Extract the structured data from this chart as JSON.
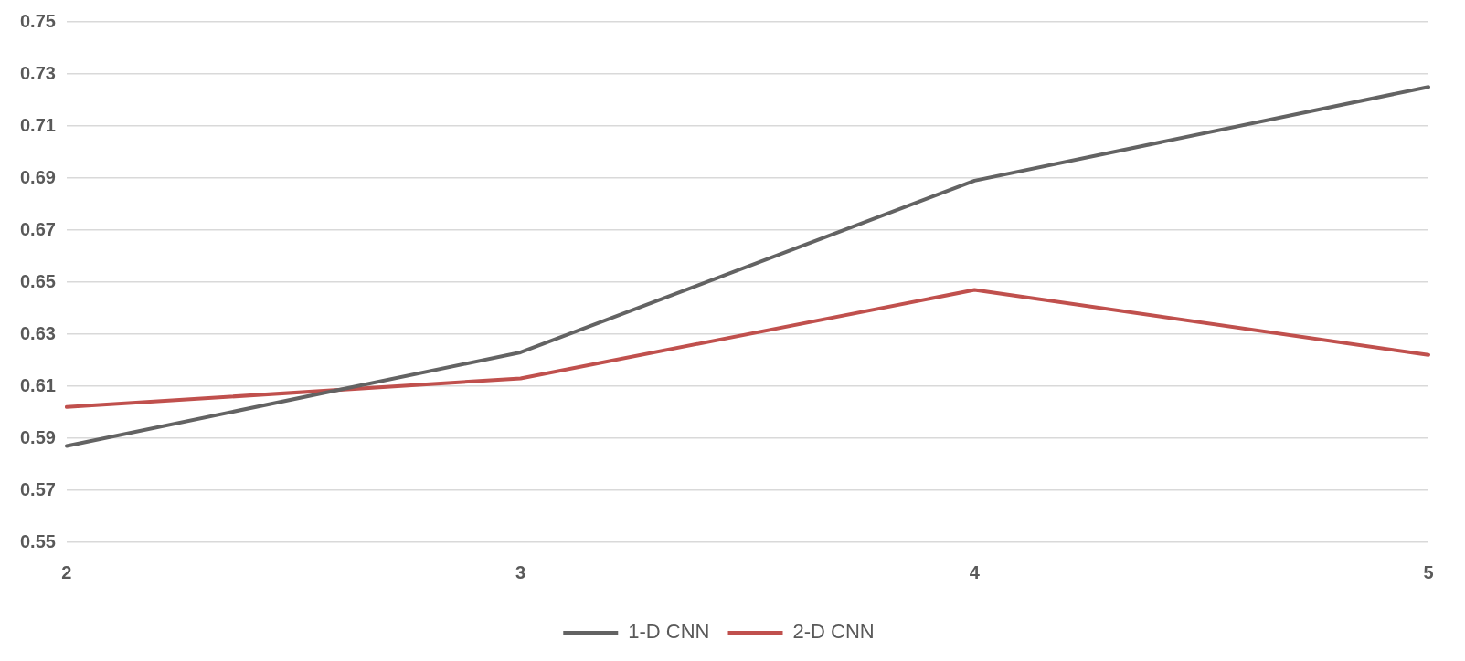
{
  "chart_data": {
    "type": "line",
    "categories": [
      "2",
      "3",
      "4",
      "5"
    ],
    "series": [
      {
        "name": "1-D CNN",
        "color": "#636363",
        "values": [
          0.587,
          0.623,
          0.689,
          0.725
        ]
      },
      {
        "name": "2-D CNN",
        "color": "#c0504d",
        "values": [
          0.602,
          0.613,
          0.647,
          0.622
        ]
      }
    ],
    "ylim": [
      0.55,
      0.75
    ],
    "yticks": [
      0.55,
      0.57,
      0.59,
      0.61,
      0.63,
      0.65,
      0.67,
      0.69,
      0.71,
      0.73,
      0.75
    ],
    "grid": "y",
    "legend": "bottom",
    "marker": "none",
    "line_style": "solid"
  }
}
